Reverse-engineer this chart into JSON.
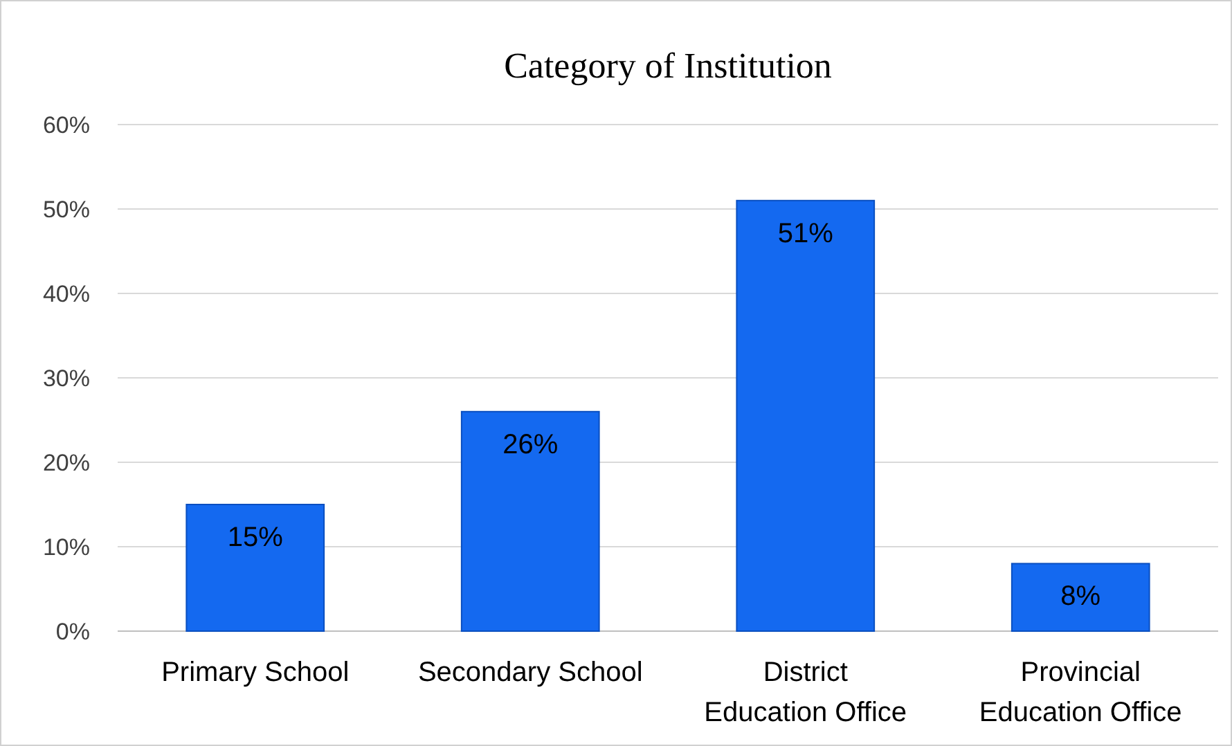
{
  "chart_data": {
    "type": "bar",
    "title": "Category of Institution",
    "categories": [
      "Primary School",
      "Secondary School",
      "District Education Office",
      "Provincial Education Office"
    ],
    "values": [
      15,
      26,
      51,
      8
    ],
    "value_labels": [
      "15%",
      "26%",
      "51%",
      "8%"
    ],
    "color": "#1469f0",
    "ylim": [
      0,
      60
    ],
    "yticks": [
      {
        "value": 0,
        "label": "0%"
      },
      {
        "value": 10,
        "label": "10%"
      },
      {
        "value": 20,
        "label": "20%"
      },
      {
        "value": 30,
        "label": "30%"
      },
      {
        "value": 40,
        "label": "40%"
      },
      {
        "value": 50,
        "label": "50%"
      },
      {
        "value": 60,
        "label": "60%"
      }
    ],
    "grid": "y"
  }
}
